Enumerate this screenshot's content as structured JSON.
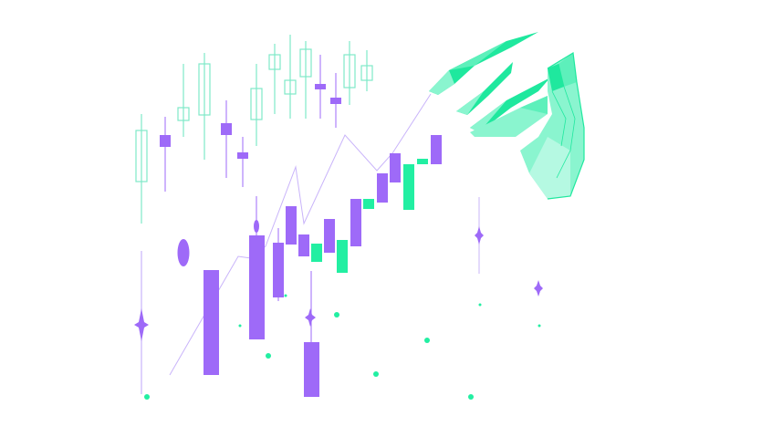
{
  "colors": {
    "purple": "#9E6AF8",
    "green": "#22EFA2",
    "outline_green": "#7FE9C8",
    "hand_fill": "#8AF5CF",
    "hand_dark": "#1FE89E",
    "line": "#C9B4FA"
  },
  "illustration": {
    "icon": "trading-chart-hand-illustration"
  }
}
